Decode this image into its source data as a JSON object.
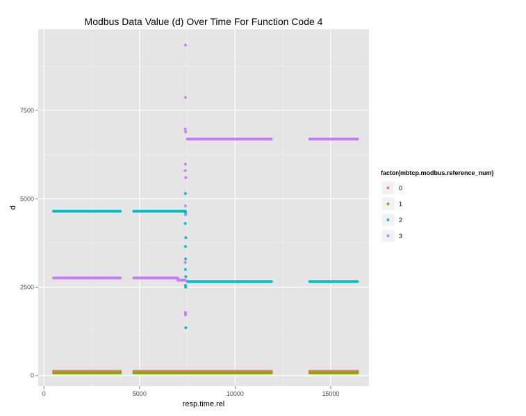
{
  "chart_data": {
    "type": "scatter",
    "title": "Modbus Data Value (d) Over Time For Function Code 4",
    "xlabel": "resp.time.rel",
    "ylabel": "d",
    "xlim": [
      -300,
      17000
    ],
    "ylim": [
      -300,
      9800
    ],
    "x_ticks": [
      0,
      5000,
      10000,
      15000
    ],
    "x_tick_labels": [
      "0",
      "5000",
      "10000",
      "15000"
    ],
    "y_ticks": [
      0,
      2500,
      5000,
      7500
    ],
    "y_tick_labels": [
      "0",
      "2500",
      "5000",
      "7500"
    ],
    "grid": true,
    "legend": {
      "title": "factor(mbtcp.modbus.reference_num)",
      "placement": "right"
    },
    "series": [
      {
        "name": "0",
        "color": "#F8766D",
        "segments": [
          {
            "x_start": 500,
            "x_end": 4000,
            "y": 120
          },
          {
            "x_start": 4700,
            "x_end": 11900,
            "y": 120
          },
          {
            "x_start": 13900,
            "x_end": 16400,
            "y": 120
          }
        ]
      },
      {
        "name": "1",
        "color": "#7CAE00",
        "segments": [
          {
            "x_start": 500,
            "x_end": 4000,
            "y": 75
          },
          {
            "x_start": 4700,
            "x_end": 11900,
            "y": 75
          },
          {
            "x_start": 13900,
            "x_end": 16400,
            "y": 75
          }
        ]
      },
      {
        "name": "2",
        "color": "#00BFC4",
        "segments": [
          {
            "x_start": 500,
            "x_end": 4000,
            "y": 4650
          },
          {
            "x_start": 4700,
            "x_end": 7400,
            "y": 4650
          },
          {
            "x_start": 7500,
            "x_end": 11900,
            "y": 2660
          },
          {
            "x_start": 13900,
            "x_end": 16400,
            "y": 2660
          }
        ],
        "points": [
          {
            "x": 7400,
            "y": 5150
          },
          {
            "x": 7410,
            "y": 4600
          },
          {
            "x": 7390,
            "y": 4300
          },
          {
            "x": 7420,
            "y": 3900
          },
          {
            "x": 7400,
            "y": 3650
          },
          {
            "x": 7410,
            "y": 3300
          },
          {
            "x": 7400,
            "y": 3000
          },
          {
            "x": 7420,
            "y": 2800
          },
          {
            "x": 7400,
            "y": 2550
          },
          {
            "x": 7410,
            "y": 2500
          },
          {
            "x": 7400,
            "y": 1750
          },
          {
            "x": 7420,
            "y": 1350
          }
        ]
      },
      {
        "name": "3",
        "color": "#C77CFF",
        "segments": [
          {
            "x_start": 500,
            "x_end": 4000,
            "y": 2760
          },
          {
            "x_start": 4700,
            "x_end": 7000,
            "y": 2760
          },
          {
            "x_start": 7000,
            "x_end": 7400,
            "y": 2700
          },
          {
            "x_start": 7500,
            "x_end": 11900,
            "y": 6690
          },
          {
            "x_start": 13900,
            "x_end": 16400,
            "y": 6690
          }
        ],
        "points": [
          {
            "x": 7400,
            "y": 9350
          },
          {
            "x": 7400,
            "y": 7870
          },
          {
            "x": 7390,
            "y": 6980
          },
          {
            "x": 7410,
            "y": 6900
          },
          {
            "x": 7400,
            "y": 5980
          },
          {
            "x": 7390,
            "y": 5800
          },
          {
            "x": 7420,
            "y": 5600
          },
          {
            "x": 7400,
            "y": 4800
          },
          {
            "x": 7410,
            "y": 4550
          },
          {
            "x": 7390,
            "y": 3200
          },
          {
            "x": 7400,
            "y": 1780
          },
          {
            "x": 7410,
            "y": 1720
          }
        ]
      }
    ]
  }
}
